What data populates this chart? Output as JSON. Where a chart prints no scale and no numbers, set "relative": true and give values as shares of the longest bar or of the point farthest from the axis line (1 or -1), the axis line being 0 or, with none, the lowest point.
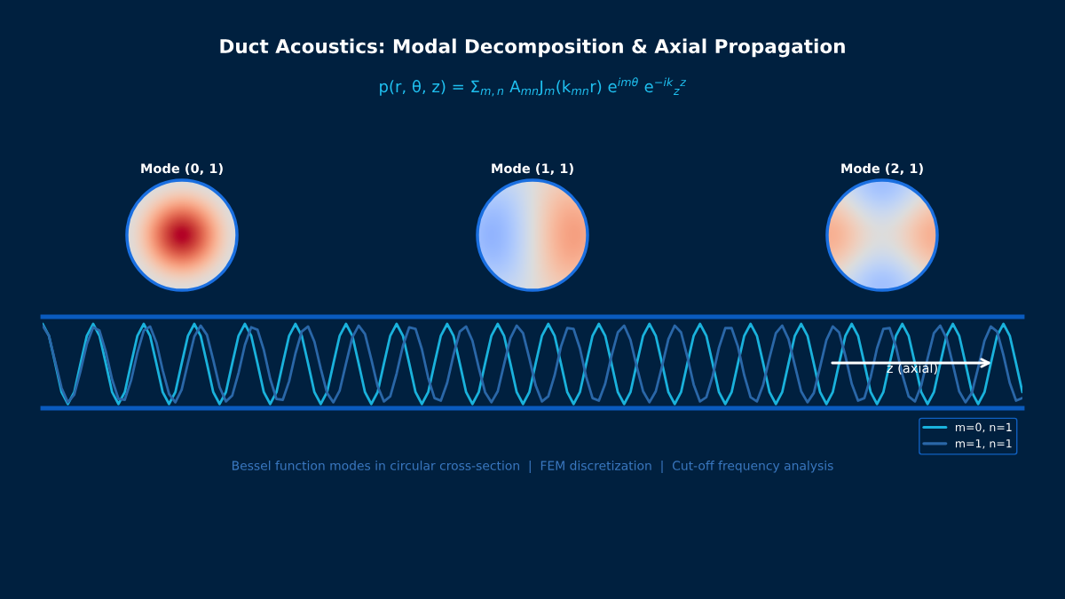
{
  "chart_data": {
    "type": "line",
    "title": "Duct Acoustics: Modal Decomposition & Axial Propagation",
    "subtitle": "p(r, θ, z) = Σ$_{m,n}$ A$_{mn}$J$_{m}$(k$_{mn}$r) e$^{imθ}$ e$^{−ik}$$_{z}$$^{z}$",
    "relative": true,
    "categories": [
      null,
      null,
      null,
      null,
      null,
      null,
      null,
      null,
      null,
      null,
      null,
      null,
      null,
      null,
      null,
      null,
      null,
      null,
      null,
      null,
      null,
      null,
      null,
      null,
      null,
      null,
      null,
      null,
      null,
      null,
      null,
      null,
      null,
      null,
      null,
      null,
      null,
      null,
      null,
      null,
      null,
      null,
      null,
      null,
      null,
      null,
      null,
      null,
      null,
      null,
      null,
      null,
      null,
      null,
      null,
      null,
      null,
      null,
      null,
      null,
      null,
      null,
      null,
      null,
      null,
      null,
      null,
      null,
      null,
      null,
      null,
      null,
      null,
      null,
      null,
      null,
      null,
      null,
      null,
      null,
      null,
      null,
      null,
      null,
      null,
      null,
      null,
      null,
      null,
      null,
      null,
      null,
      null,
      null,
      null,
      null,
      null,
      null,
      null,
      null,
      null,
      null,
      null,
      null,
      null,
      null,
      null,
      null,
      null,
      null,
      null,
      null,
      null,
      null,
      null,
      null,
      null,
      null,
      null,
      null,
      null,
      null,
      null,
      null,
      null,
      null,
      null,
      null,
      null,
      null,
      null,
      null,
      null,
      null,
      null,
      null,
      null,
      null,
      null,
      null,
      null,
      null,
      null,
      null,
      null,
      null,
      null,
      null,
      null,
      null,
      null,
      null,
      null,
      null,
      null,
      null
    ],
    "series": [
      {
        "name": "m=0, n=1",
        "color": "#1ab2dc",
        "values": [
          1,
          0.86,
          0.53,
          0.19,
          0.05,
          0.19,
          0.53,
          0.86,
          1,
          0.86,
          0.53,
          0.19,
          0.05,
          0.19,
          0.53,
          0.86,
          1,
          0.86,
          0.53,
          0.19,
          0.05,
          0.19,
          0.53,
          0.86,
          1,
          0.86,
          0.53,
          0.19,
          0.05,
          0.19,
          0.53,
          0.86,
          1,
          0.86,
          0.53,
          0.19,
          0.05,
          0.19,
          0.53,
          0.86,
          1,
          0.86,
          0.53,
          0.19,
          0.05,
          0.19,
          0.53,
          0.86,
          1,
          0.86,
          0.53,
          0.19,
          0.05,
          0.19,
          0.53,
          0.86,
          1,
          0.86,
          0.53,
          0.19,
          0.05,
          0.19,
          0.53,
          0.86,
          1,
          0.86,
          0.53,
          0.19,
          0.05,
          0.19,
          0.53,
          0.86,
          1,
          0.86,
          0.53,
          0.19,
          0.05,
          0.19,
          0.53,
          0.86,
          1,
          0.86,
          0.53,
          0.19,
          0.05,
          0.19,
          0.53,
          0.86,
          1,
          0.86,
          0.53,
          0.19,
          0.05,
          0.19,
          0.53,
          0.86,
          1,
          0.86,
          0.53,
          0.19,
          0.05,
          0.19,
          0.53,
          0.86,
          1,
          0.86,
          0.53,
          0.19,
          0.05,
          0.19,
          0.53,
          0.86,
          1,
          0.86,
          0.53,
          0.19,
          0.05,
          0.19,
          0.53,
          0.86,
          1,
          0.86,
          0.53,
          0.19,
          0.05,
          0.19,
          0.53,
          0.86,
          1,
          0.86,
          0.53,
          0.19,
          0.05,
          0.19,
          0.53,
          0.86,
          1,
          0.86,
          0.53,
          0.19,
          0.05,
          0.19,
          0.53,
          0.86,
          1,
          0.86,
          0.53,
          0.19,
          0.05,
          0.19,
          0.53,
          0.86,
          1,
          0.86,
          0.53,
          0.19
        ]
      },
      {
        "name": "m=1, n=1",
        "color": "#2a67a8",
        "values": [
          0.98,
          0.86,
          0.55,
          0.24,
          0.07,
          0.16,
          0.44,
          0.76,
          0.96,
          0.92,
          0.67,
          0.34,
          0.11,
          0.1,
          0.33,
          0.66,
          0.92,
          0.97,
          0.78,
          0.45,
          0.17,
          0.07,
          0.22,
          0.54,
          0.85,
          0.98,
          0.87,
          0.57,
          0.25,
          0.08,
          0.15,
          0.42,
          0.75,
          0.96,
          0.93,
          0.69,
          0.35,
          0.11,
          0.1,
          0.32,
          0.65,
          0.91,
          0.97,
          0.79,
          0.47,
          0.18,
          0.07,
          0.21,
          0.53,
          0.84,
          0.98,
          0.88,
          0.58,
          0.26,
          0.08,
          0.14,
          0.41,
          0.74,
          0.96,
          0.94,
          0.7,
          0.36,
          0.12,
          0.09,
          0.3,
          0.63,
          0.91,
          0.97,
          0.8,
          0.48,
          0.19,
          0.07,
          0.2,
          0.52,
          0.83,
          0.98,
          0.89,
          0.59,
          0.27,
          0.08,
          0.14,
          0.39,
          0.73,
          0.95,
          0.94,
          0.71,
          0.37,
          0.12,
          0.09,
          0.29,
          0.62,
          0.9,
          0.98,
          0.81,
          0.49,
          0.2,
          0.07,
          0.2,
          0.5,
          0.82,
          0.98,
          0.9,
          0.61,
          0.28,
          0.08,
          0.13,
          0.38,
          0.72,
          0.95,
          0.95,
          0.73,
          0.39,
          0.13,
          0.08,
          0.28,
          0.6,
          0.89,
          0.98,
          0.82,
          0.51,
          0.2,
          0.07,
          0.18,
          0.49,
          0.81,
          0.97,
          0.9,
          0.62,
          0.29,
          0.09,
          0.12,
          0.37,
          0.71,
          0.94,
          0.95,
          0.73,
          0.4,
          0.14,
          0.08,
          0.27,
          0.59,
          0.89,
          0.98,
          0.83,
          0.52,
          0.2,
          0.07,
          0.18,
          0.48,
          0.8,
          0.97,
          0.91,
          0.63,
          0.3,
          0.09,
          0.12
        ]
      }
    ],
    "legend": "bottom right",
    "line_style": "solid",
    "annotations": [
      "Mode (0, 1)",
      "Mode (1, 1)",
      "Mode (2, 1)",
      "z (axial)",
      "Bessel function modes in circular cross-section  |  FEM discretization  |  Cut-off frequency analysis"
    ]
  }
}
